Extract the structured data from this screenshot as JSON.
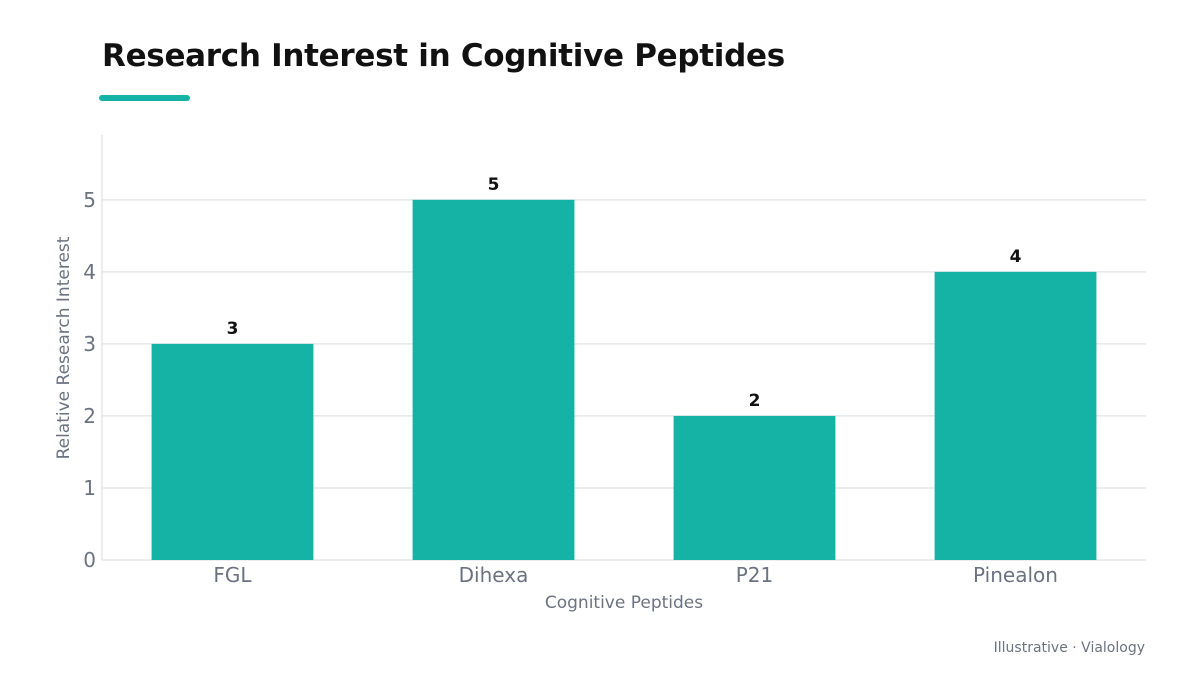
{
  "footer": {
    "note": "Illustrative · Vialology"
  },
  "colors": {
    "bar": "#14b3a6",
    "accent": "#14b3a6",
    "grid": "#e5e7eb"
  },
  "chart_data": {
    "type": "bar",
    "title": "Research Interest in Cognitive Peptides",
    "xlabel": "Cognitive Peptides",
    "ylabel": "Relative Research Interest",
    "categories": [
      "FGL",
      "Dihexa",
      "P21",
      "Pinealon"
    ],
    "values": [
      3,
      5,
      2,
      4
    ],
    "ylim": [
      0,
      5.9
    ],
    "yticks": [
      0,
      1,
      2,
      3,
      4,
      5
    ],
    "grid": true,
    "legend": "none"
  }
}
